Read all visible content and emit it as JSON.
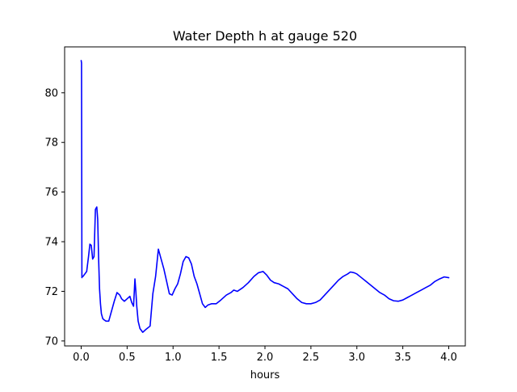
{
  "chart_data": {
    "type": "line",
    "title": "Water Depth h at gauge 520",
    "xlabel": "hours",
    "ylabel": "",
    "xlim": [
      -0.18,
      4.18
    ],
    "ylim": [
      69.8,
      81.85
    ],
    "xticks": [
      0.0,
      0.5,
      1.0,
      1.5,
      2.0,
      2.5,
      3.0,
      3.5,
      4.0
    ],
    "xtick_labels": [
      "0.0",
      "0.5",
      "1.0",
      "1.5",
      "2.0",
      "2.5",
      "3.0",
      "3.5",
      "4.0"
    ],
    "yticks": [
      70,
      72,
      74,
      76,
      78,
      80
    ],
    "ytick_labels": [
      "70",
      "72",
      "74",
      "76",
      "78",
      "80"
    ],
    "grid": false,
    "series": [
      {
        "color": "#0000ff",
        "x": [
          0.0,
          0.004,
          0.008,
          0.012,
          0.02,
          0.04,
          0.06,
          0.08,
          0.095,
          0.11,
          0.125,
          0.14,
          0.155,
          0.17,
          0.18,
          0.19,
          0.2,
          0.21,
          0.22,
          0.235,
          0.25,
          0.27,
          0.3,
          0.33,
          0.36,
          0.39,
          0.42,
          0.44,
          0.47,
          0.5,
          0.53,
          0.55,
          0.57,
          0.585,
          0.595,
          0.605,
          0.62,
          0.64,
          0.67,
          0.7,
          0.75,
          0.78,
          0.81,
          0.84,
          0.87,
          0.9,
          0.93,
          0.96,
          0.99,
          1.02,
          1.05,
          1.08,
          1.11,
          1.14,
          1.17,
          1.2,
          1.23,
          1.26,
          1.29,
          1.32,
          1.35,
          1.38,
          1.42,
          1.47,
          1.52,
          1.58,
          1.63,
          1.66,
          1.7,
          1.76,
          1.82,
          1.88,
          1.93,
          1.98,
          2.02,
          2.06,
          2.1,
          2.15,
          2.2,
          2.25,
          2.3,
          2.35,
          2.4,
          2.45,
          2.5,
          2.55,
          2.6,
          2.65,
          2.7,
          2.75,
          2.8,
          2.85,
          2.9,
          2.93,
          2.97,
          3.0,
          3.05,
          3.1,
          3.15,
          3.2,
          3.25,
          3.3,
          3.35,
          3.4,
          3.45,
          3.5,
          3.55,
          3.6,
          3.65,
          3.7,
          3.75,
          3.8,
          3.85,
          3.9,
          3.95,
          4.0
        ],
        "y": [
          81.3,
          81.2,
          72.55,
          72.6,
          72.6,
          72.7,
          72.8,
          73.4,
          73.9,
          73.85,
          73.3,
          73.4,
          75.3,
          75.4,
          74.9,
          73.3,
          72.1,
          71.5,
          71.1,
          70.9,
          70.85,
          70.8,
          70.8,
          71.2,
          71.6,
          71.95,
          71.85,
          71.7,
          71.6,
          71.7,
          71.8,
          71.55,
          71.4,
          72.5,
          72.0,
          71.4,
          70.8,
          70.5,
          70.35,
          70.45,
          70.6,
          71.9,
          72.6,
          73.7,
          73.3,
          72.9,
          72.4,
          71.9,
          71.85,
          72.1,
          72.3,
          72.7,
          73.2,
          73.4,
          73.35,
          73.1,
          72.6,
          72.3,
          71.9,
          71.5,
          71.35,
          71.45,
          71.5,
          71.5,
          71.65,
          71.85,
          71.95,
          72.05,
          72.0,
          72.15,
          72.35,
          72.6,
          72.75,
          72.8,
          72.65,
          72.45,
          72.35,
          72.3,
          72.2,
          72.1,
          71.9,
          71.7,
          71.55,
          71.5,
          71.5,
          71.55,
          71.65,
          71.85,
          72.05,
          72.25,
          72.45,
          72.6,
          72.7,
          72.78,
          72.75,
          72.7,
          72.55,
          72.4,
          72.25,
          72.1,
          71.95,
          71.85,
          71.7,
          71.62,
          71.6,
          71.65,
          71.75,
          71.85,
          71.95,
          72.05,
          72.15,
          72.25,
          72.4,
          72.5,
          72.58,
          72.55
        ]
      }
    ]
  }
}
